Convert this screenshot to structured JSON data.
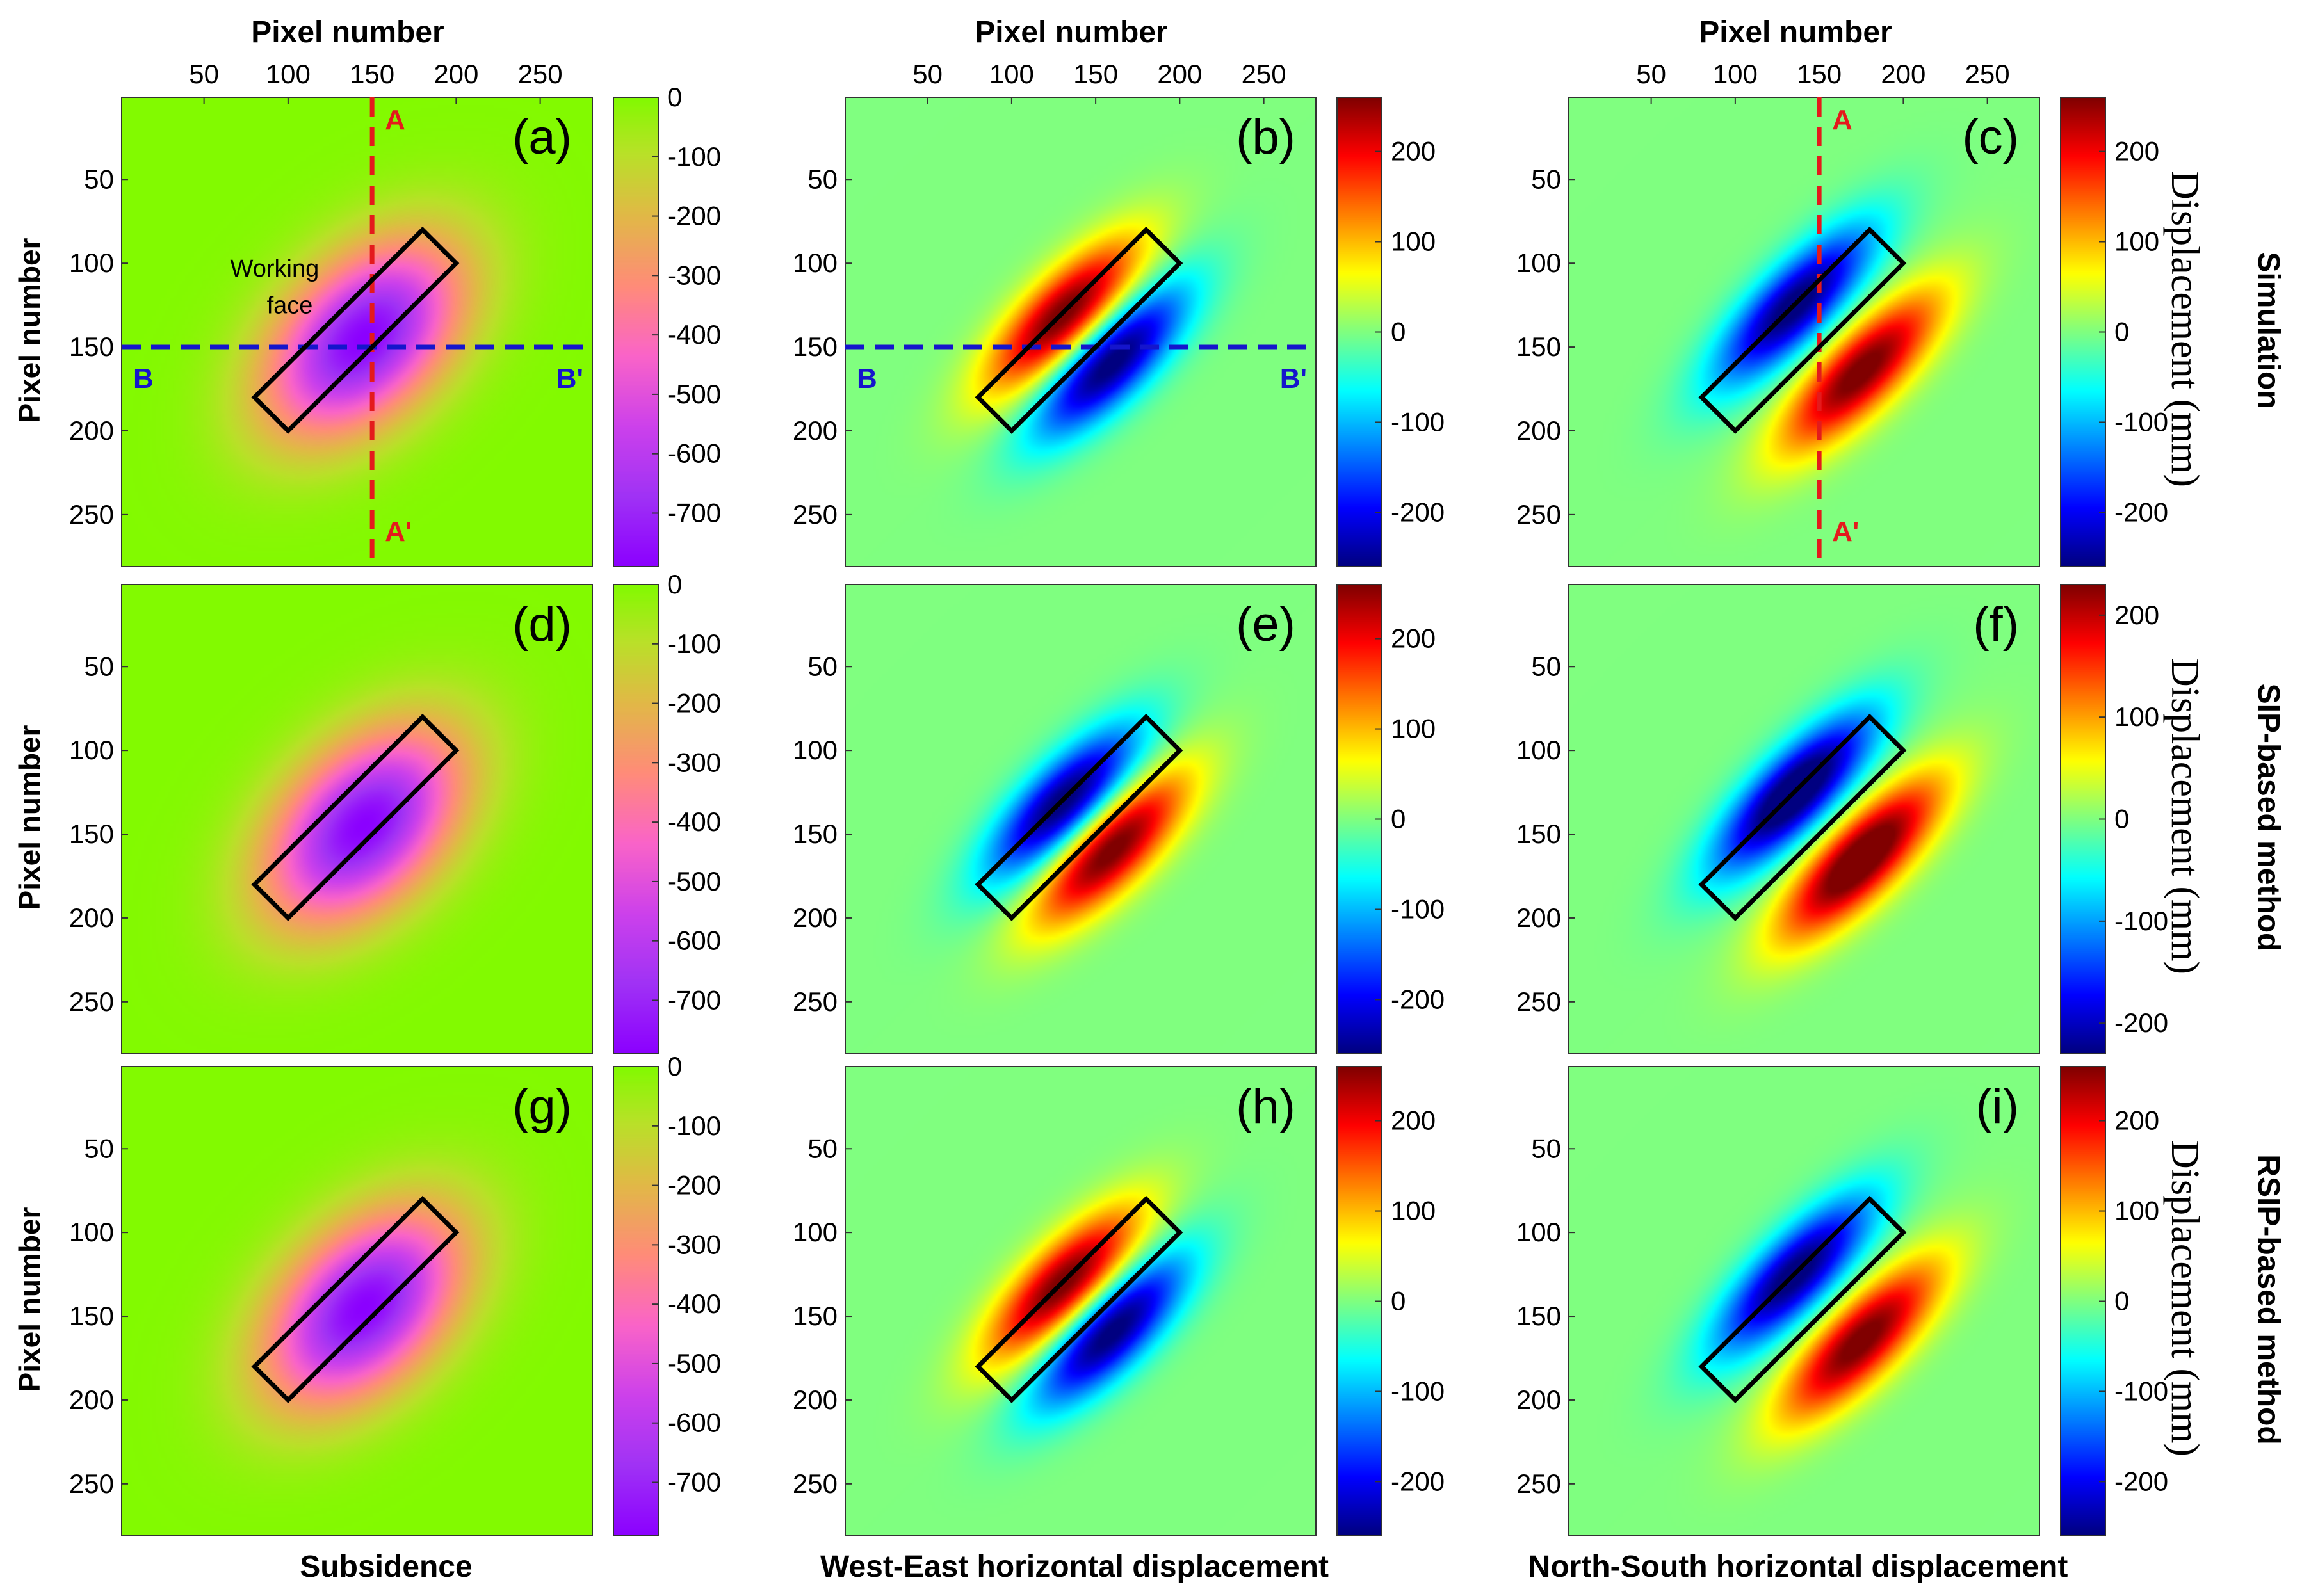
{
  "figure": {
    "col_top_label": "Pixel number",
    "row_left_label": "Pixel number",
    "cbar_title": "Displacement (mm)",
    "col_bottom_labels": [
      "Subsidence",
      "West-East horizontal displacement",
      "North-South horizontal displacement"
    ],
    "row_right_labels": [
      "Simulation",
      "SIP-based method",
      "RSIP-based method"
    ],
    "working_face_label": [
      "Working",
      "face"
    ],
    "profile_labels": {
      "a": "A",
      "a_end": "A'",
      "b": "B",
      "b_end": "B'"
    },
    "colors": {
      "line_a": "#e41a1c",
      "line_b": "#1515cc",
      "rect": "#000000"
    }
  },
  "chart_data": [
    {
      "id": "a",
      "panel_label": "(a)",
      "type": "heatmap",
      "field": "subsidence",
      "colormap": "subsidence",
      "clim": [
        -790,
        0
      ],
      "cbar_ticks": [
        0,
        -100,
        -200,
        -300,
        -400,
        -500,
        -600,
        -700
      ],
      "xlim": [
        1,
        281
      ],
      "ylim": [
        1,
        281
      ],
      "x_ticks": [
        50,
        100,
        150,
        200,
        250
      ],
      "y_ticks": [
        50,
        100,
        150,
        200,
        250
      ],
      "working_face": [
        [
          80,
          180
        ],
        [
          180,
          80
        ],
        [
          200,
          100
        ],
        [
          100,
          200
        ]
      ],
      "profile_ab": {
        "x": 150,
        "y": 150
      },
      "show_working_face_label": true
    },
    {
      "id": "b",
      "panel_label": "(b)",
      "type": "heatmap",
      "field": "we",
      "sign": 1,
      "colormap": "jet",
      "clim": [
        -260,
        260
      ],
      "cbar_ticks": [
        200,
        100,
        0,
        -100,
        -200
      ],
      "xlim": [
        1,
        281
      ],
      "ylim": [
        1,
        281
      ],
      "x_ticks": [
        50,
        100,
        150,
        200,
        250
      ],
      "y_ticks": [
        50,
        100,
        150,
        200,
        250
      ],
      "working_face": [
        [
          80,
          180
        ],
        [
          180,
          80
        ],
        [
          200,
          100
        ],
        [
          100,
          200
        ]
      ],
      "profile_b": {
        "y": 150
      }
    },
    {
      "id": "c",
      "panel_label": "(c)",
      "type": "heatmap",
      "field": "ns",
      "colormap": "jet",
      "clim": [
        -260,
        260
      ],
      "cbar_ticks": [
        200,
        100,
        0,
        -100,
        -200
      ],
      "xlim": [
        1,
        281
      ],
      "ylim": [
        1,
        281
      ],
      "x_ticks": [
        50,
        100,
        150,
        200,
        250
      ],
      "y_ticks": [
        50,
        100,
        150,
        200,
        250
      ],
      "working_face": [
        [
          80,
          180
        ],
        [
          180,
          80
        ],
        [
          200,
          100
        ],
        [
          100,
          200
        ]
      ],
      "profile_a": {
        "x": 150
      }
    },
    {
      "id": "d",
      "panel_label": "(d)",
      "type": "heatmap",
      "field": "subsidence",
      "colormap": "subsidence",
      "clim": [
        -790,
        0
      ],
      "cbar_ticks": [
        0,
        -100,
        -200,
        -300,
        -400,
        -500,
        -600,
        -700
      ],
      "xlim": [
        1,
        281
      ],
      "ylim": [
        1,
        281
      ],
      "y_ticks": [
        50,
        100,
        150,
        200,
        250
      ],
      "working_face": [
        [
          80,
          180
        ],
        [
          180,
          80
        ],
        [
          200,
          100
        ],
        [
          100,
          200
        ]
      ]
    },
    {
      "id": "e",
      "panel_label": "(e)",
      "type": "heatmap",
      "field": "we",
      "sign": -1,
      "colormap": "jet",
      "clim": [
        -260,
        260
      ],
      "cbar_ticks": [
        200,
        100,
        0,
        -100,
        -200
      ],
      "xlim": [
        1,
        281
      ],
      "ylim": [
        1,
        281
      ],
      "y_ticks": [
        50,
        100,
        150,
        200,
        250
      ],
      "working_face": [
        [
          80,
          180
        ],
        [
          180,
          80
        ],
        [
          200,
          100
        ],
        [
          100,
          200
        ]
      ]
    },
    {
      "id": "f",
      "panel_label": "(f)",
      "type": "heatmap",
      "field": "ns",
      "colormap": "jet",
      "clim": [
        -230,
        230
      ],
      "cbar_ticks": [
        200,
        100,
        0,
        -100,
        -200
      ],
      "xlim": [
        1,
        281
      ],
      "ylim": [
        1,
        281
      ],
      "y_ticks": [
        50,
        100,
        150,
        200,
        250
      ],
      "working_face": [
        [
          80,
          180
        ],
        [
          180,
          80
        ],
        [
          200,
          100
        ],
        [
          100,
          200
        ]
      ]
    },
    {
      "id": "g",
      "panel_label": "(g)",
      "type": "heatmap",
      "field": "subsidence",
      "colormap": "subsidence",
      "clim": [
        -790,
        0
      ],
      "cbar_ticks": [
        0,
        -100,
        -200,
        -300,
        -400,
        -500,
        -600,
        -700
      ],
      "xlim": [
        1,
        281
      ],
      "ylim": [
        1,
        281
      ],
      "y_ticks": [
        50,
        100,
        150,
        200,
        250
      ],
      "working_face": [
        [
          80,
          180
        ],
        [
          180,
          80
        ],
        [
          200,
          100
        ],
        [
          100,
          200
        ]
      ]
    },
    {
      "id": "h",
      "panel_label": "(h)",
      "type": "heatmap",
      "field": "we",
      "sign": 1,
      "colormap": "jet",
      "clim": [
        -260,
        260
      ],
      "cbar_ticks": [
        200,
        100,
        0,
        -100,
        -200
      ],
      "xlim": [
        1,
        281
      ],
      "ylim": [
        1,
        281
      ],
      "y_ticks": [
        50,
        100,
        150,
        200,
        250
      ],
      "working_face": [
        [
          80,
          180
        ],
        [
          180,
          80
        ],
        [
          200,
          100
        ],
        [
          100,
          200
        ]
      ]
    },
    {
      "id": "i",
      "panel_label": "(i)",
      "type": "heatmap",
      "field": "ns",
      "colormap": "jet",
      "clim": [
        -260,
        260
      ],
      "cbar_ticks": [
        200,
        100,
        0,
        -100,
        -200
      ],
      "xlim": [
        1,
        281
      ],
      "ylim": [
        1,
        281
      ],
      "y_ticks": [
        50,
        100,
        150,
        200,
        250
      ],
      "working_face": [
        [
          80,
          180
        ],
        [
          180,
          80
        ],
        [
          200,
          100
        ],
        [
          100,
          200
        ]
      ]
    }
  ]
}
